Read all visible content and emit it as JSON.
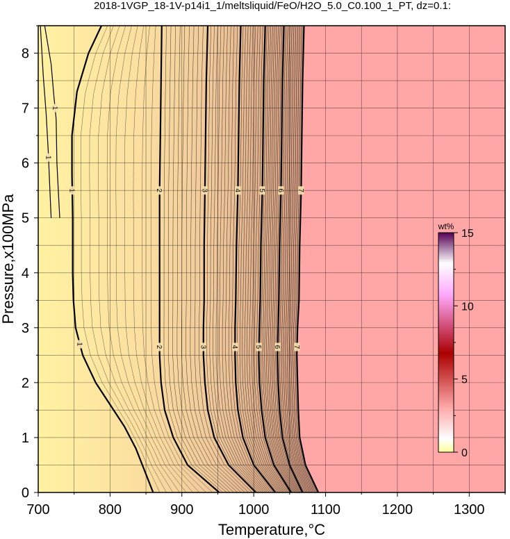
{
  "chart_data": {
    "type": "contour",
    "title": "2018-1VGP_18-1V-p14i1_1/meltsliquid/FeO/H2O_5.0_C0.100_1_PT, dz=0.1:",
    "xlabel": "Temperature,°C",
    "ylabel": "Pressure,x100MPa",
    "xlim": [
      700,
      1350
    ],
    "ylim": [
      0,
      8.5
    ],
    "x_ticks": [
      "700",
      "800",
      "900",
      "1000",
      "1100",
      "1200",
      "1300"
    ],
    "y_ticks": [
      "0",
      "1",
      "2",
      "3",
      "4",
      "5",
      "6",
      "7",
      "8"
    ],
    "grid": true,
    "colorbar": {
      "unit": "wt%",
      "min": 0,
      "max": 15,
      "ticks": [
        "0",
        "5",
        "10",
        "15"
      ],
      "colors": [
        "#ffff99",
        "#ffffff",
        "#ffaaaa",
        "#aa0000",
        "#ffaaff",
        "#ffffff",
        "#550055"
      ]
    },
    "fill_high_color": "#ffa6a6",
    "contour_lines": [
      {
        "label": "1",
        "points": [
          [
            709,
            8.5
          ],
          [
            718,
            7.8
          ],
          [
            722,
            7.2
          ],
          [
            725,
            6.8
          ],
          [
            726,
            6.0
          ],
          [
            728,
            5.5
          ],
          [
            730,
            5.0
          ]
        ]
      },
      {
        "label": "1",
        "points": [
          [
            703,
            8.5
          ],
          [
            707,
            7.6
          ],
          [
            711,
            6.9
          ],
          [
            714,
            6.2
          ],
          [
            716,
            5.6
          ],
          [
            718,
            5.0
          ]
        ]
      },
      {
        "label": "1",
        "points": [
          [
            788,
            8.5
          ],
          [
            770,
            8.0
          ],
          [
            754,
            7.3
          ],
          [
            747,
            6.5
          ],
          [
            747,
            5.8
          ],
          [
            748,
            5.0
          ],
          [
            748,
            4.5
          ],
          [
            748,
            4.0
          ],
          [
            749,
            3.5
          ],
          [
            752,
            3.0
          ],
          [
            762,
            2.5
          ],
          [
            780,
            2.0
          ],
          [
            800,
            1.6
          ],
          [
            820,
            1.2
          ],
          [
            836,
            0.8
          ],
          [
            848,
            0.4
          ],
          [
            860,
            0.0
          ]
        ]
      },
      {
        "label": "2",
        "points": [
          [
            872,
            8.5
          ],
          [
            871,
            7.5
          ],
          [
            870,
            6.5
          ],
          [
            869,
            5.5
          ],
          [
            869,
            4.5
          ],
          [
            869,
            3.5
          ],
          [
            869,
            3.0
          ],
          [
            869,
            2.5
          ],
          [
            871,
            2.0
          ],
          [
            876,
            1.5
          ],
          [
            888,
            1.0
          ],
          [
            908,
            0.5
          ],
          [
            952,
            0.0
          ]
        ]
      },
      {
        "label": "3",
        "points": [
          [
            936,
            8.5
          ],
          [
            934,
            7.5
          ],
          [
            933,
            6.5
          ],
          [
            932,
            5.5
          ],
          [
            931,
            4.5
          ],
          [
            931,
            3.5
          ],
          [
            930,
            3.0
          ],
          [
            930,
            2.5
          ],
          [
            932,
            2.0
          ],
          [
            936,
            1.5
          ],
          [
            945,
            1.0
          ],
          [
            965,
            0.5
          ],
          [
            1003,
            0.0
          ]
        ]
      },
      {
        "label": "4",
        "points": [
          [
            982,
            8.5
          ],
          [
            980,
            7.5
          ],
          [
            979,
            6.5
          ],
          [
            978,
            5.5
          ],
          [
            976,
            4.5
          ],
          [
            975,
            3.5
          ],
          [
            974,
            3.0
          ],
          [
            974,
            2.5
          ],
          [
            975,
            2.0
          ],
          [
            978,
            1.5
          ],
          [
            985,
            1.0
          ],
          [
            1000,
            0.5
          ],
          [
            1030,
            0.0
          ]
        ]
      },
      {
        "label": "5",
        "points": [
          [
            1016,
            8.5
          ],
          [
            1014,
            7.5
          ],
          [
            1013,
            6.5
          ],
          [
            1012,
            5.5
          ],
          [
            1010,
            4.5
          ],
          [
            1009,
            3.5
          ],
          [
            1008,
            3.0
          ],
          [
            1007,
            2.5
          ],
          [
            1008,
            2.0
          ],
          [
            1011,
            1.5
          ],
          [
            1016,
            1.0
          ],
          [
            1028,
            0.5
          ],
          [
            1052,
            0.0
          ]
        ]
      },
      {
        "label": "6",
        "points": [
          [
            1042,
            8.5
          ],
          [
            1040,
            7.5
          ],
          [
            1039,
            6.5
          ],
          [
            1038,
            5.5
          ],
          [
            1036,
            4.5
          ],
          [
            1035,
            3.5
          ],
          [
            1034,
            3.0
          ],
          [
            1033,
            2.5
          ],
          [
            1034,
            2.0
          ],
          [
            1036,
            1.5
          ],
          [
            1040,
            1.0
          ],
          [
            1050,
            0.5
          ],
          [
            1068,
            0.0
          ]
        ]
      },
      {
        "label": "7",
        "points": [
          [
            1070,
            8.5
          ],
          [
            1068,
            7.5
          ],
          [
            1067,
            6.5
          ],
          [
            1066,
            5.5
          ],
          [
            1064,
            4.5
          ],
          [
            1063,
            3.5
          ],
          [
            1061,
            3.0
          ],
          [
            1060,
            2.5
          ],
          [
            1061,
            2.0
          ],
          [
            1062,
            1.5
          ],
          [
            1064,
            1.0
          ],
          [
            1072,
            0.5
          ],
          [
            1090,
            0.0
          ]
        ]
      }
    ]
  }
}
